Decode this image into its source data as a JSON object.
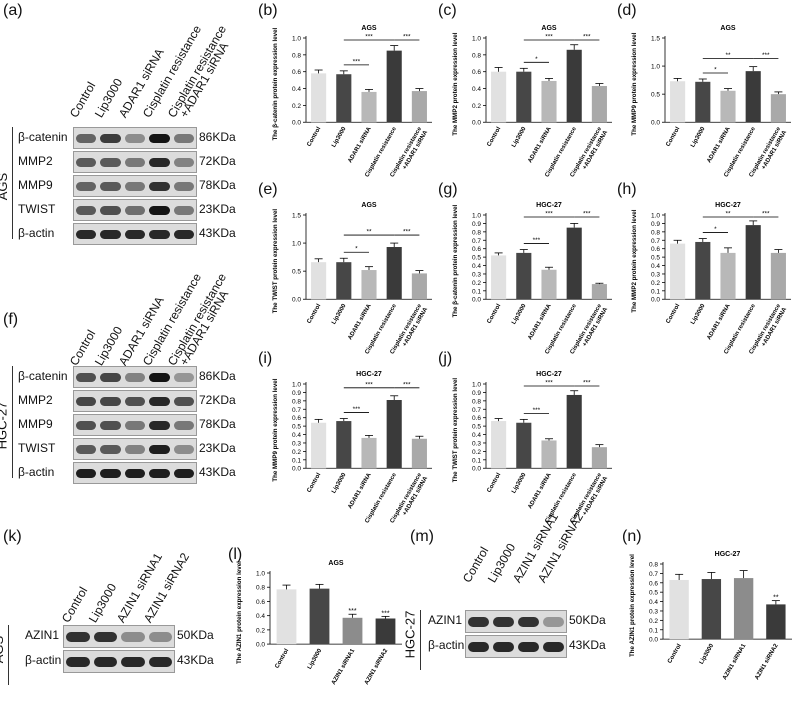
{
  "letters": {
    "a": "(a)",
    "b": "(b)",
    "c": "(c)",
    "d": "(d)",
    "e": "(e)",
    "f": "(f)",
    "g": "(g)",
    "h": "(h)",
    "i": "(i)",
    "j": "(j)",
    "k": "(k)",
    "l": "(l)",
    "m": "(m)",
    "n": "(n)"
  },
  "blots": {
    "a": {
      "cell_line": "AGS",
      "lanes": [
        "Control",
        "Lip3000",
        "ADAR1 siRNA",
        "Cisplatin resistance",
        "Cisplatin resistance +ADAR1 siRNA"
      ],
      "rows": [
        {
          "protein": "β-catenin",
          "size": "86KDa",
          "intensity": [
            0.55,
            0.75,
            0.35,
            0.95,
            0.45
          ]
        },
        {
          "protein": "MMP2",
          "size": "72KDa",
          "intensity": [
            0.6,
            0.6,
            0.45,
            0.85,
            0.4
          ]
        },
        {
          "protein": "MMP9",
          "size": "78KDa",
          "intensity": [
            0.55,
            0.6,
            0.45,
            0.8,
            0.45
          ]
        },
        {
          "protein": "TWIST",
          "size": "23KDa",
          "intensity": [
            0.6,
            0.65,
            0.5,
            0.95,
            0.45
          ]
        },
        {
          "protein": "β-actin",
          "size": "43KDa",
          "intensity": [
            0.85,
            0.85,
            0.85,
            0.85,
            0.85
          ]
        }
      ]
    },
    "f": {
      "cell_line": "HGC-27",
      "lanes": [
        "Control",
        "Lip3000",
        "ADAR1 siRNA",
        "Cisplatin resistance",
        "Cisplatin resistance +ADAR1 siRNA"
      ],
      "rows": [
        {
          "protein": "β-catenin",
          "size": "86KDa",
          "intensity": [
            0.65,
            0.7,
            0.4,
            0.95,
            0.3
          ]
        },
        {
          "protein": "MMP2",
          "size": "72KDa",
          "intensity": [
            0.7,
            0.7,
            0.65,
            0.85,
            0.65
          ]
        },
        {
          "protein": "MMP9",
          "size": "78KDa",
          "intensity": [
            0.65,
            0.65,
            0.45,
            0.85,
            0.45
          ]
        },
        {
          "protein": "TWIST",
          "size": "23KDa",
          "intensity": [
            0.6,
            0.6,
            0.4,
            0.9,
            0.35
          ]
        },
        {
          "protein": "β-actin",
          "size": "43KDa",
          "intensity": [
            0.9,
            0.9,
            0.9,
            0.9,
            0.9
          ]
        }
      ]
    },
    "k": {
      "cell_line": "AGS",
      "lanes": [
        "Control",
        "Lip3000",
        "AZIN1 siRNA1",
        "AZIN1 siRNA2"
      ],
      "rows": [
        {
          "protein": "AZIN1",
          "size": "50KDa",
          "intensity": [
            0.8,
            0.8,
            0.35,
            0.35
          ]
        },
        {
          "protein": "β-actin",
          "size": "43KDa",
          "intensity": [
            0.85,
            0.85,
            0.85,
            0.85
          ]
        }
      ]
    },
    "m": {
      "cell_line": "HGC-27",
      "lanes": [
        "Control",
        "Lip3000",
        "AZIN1 siRNA1",
        "AZIN1 siRNA2"
      ],
      "rows": [
        {
          "protein": "AZIN1",
          "size": "50KDa",
          "intensity": [
            0.8,
            0.8,
            0.8,
            0.3
          ]
        },
        {
          "protein": "β-actin",
          "size": "43KDa",
          "intensity": [
            0.85,
            0.85,
            0.85,
            0.85
          ]
        }
      ]
    }
  },
  "chart_data": [
    {
      "id": "b",
      "type": "bar",
      "title": "AGS",
      "ylabel": "The β-catenin protein expression level",
      "ylim": [
        0,
        1.0
      ],
      "yticks": [
        0,
        0.2,
        0.4,
        0.6,
        0.8,
        1.0
      ],
      "categories": [
        "Control",
        "Lip3000",
        "ADAR1 siRNA",
        "Cisplatin resistance",
        "Cisplatin resistance +ADAR1 siRNA"
      ],
      "values": [
        0.58,
        0.57,
        0.36,
        0.85,
        0.37
      ],
      "errors": [
        0.04,
        0.04,
        0.03,
        0.06,
        0.03
      ],
      "brackets": [
        {
          "from": 1,
          "to": 2,
          "label": "***",
          "level": 0
        },
        {
          "from": 1,
          "to": 3,
          "label": "***",
          "level": 1
        },
        {
          "from": 3,
          "to": 4,
          "label": "***",
          "level": 1
        }
      ]
    },
    {
      "id": "c",
      "type": "bar",
      "title": "AGS",
      "ylabel": "The MMP2 protein expression level",
      "ylim": [
        0,
        1.0
      ],
      "yticks": [
        0,
        0.2,
        0.4,
        0.6,
        0.8,
        1.0
      ],
      "categories": [
        "Control",
        "Lip3000",
        "ADAR1 siRNA",
        "Cisplatin resistance",
        "Cisplatin resistance +ADAR1 siRNA"
      ],
      "values": [
        0.6,
        0.6,
        0.49,
        0.86,
        0.43
      ],
      "errors": [
        0.05,
        0.04,
        0.03,
        0.06,
        0.03
      ],
      "brackets": [
        {
          "from": 1,
          "to": 2,
          "label": "*",
          "level": 0
        },
        {
          "from": 1,
          "to": 3,
          "label": "***",
          "level": 1
        },
        {
          "from": 3,
          "to": 4,
          "label": "***",
          "level": 1
        }
      ]
    },
    {
      "id": "d",
      "type": "bar",
      "title": "AGS",
      "ylabel": "The MMP9 protein expression level",
      "ylim": [
        0,
        1.5
      ],
      "yticks": [
        0,
        0.5,
        1.0,
        1.5
      ],
      "categories": [
        "Control",
        "Lip3000",
        "ADAR1 siRNA",
        "Cisplatin resistance",
        "Cisplatin resistance +ADAR1 siRNA"
      ],
      "values": [
        0.73,
        0.72,
        0.56,
        0.91,
        0.5
      ],
      "errors": [
        0.05,
        0.05,
        0.04,
        0.08,
        0.04
      ],
      "brackets": [
        {
          "from": 1,
          "to": 2,
          "label": "*",
          "level": 0
        },
        {
          "from": 1,
          "to": 3,
          "label": "**",
          "level": 1
        },
        {
          "from": 3,
          "to": 4,
          "label": "***",
          "level": 1
        }
      ]
    },
    {
      "id": "e",
      "type": "bar",
      "title": "AGS",
      "ylabel": "The TWIST protein expression level",
      "ylim": [
        0,
        1.5
      ],
      "yticks": [
        0,
        0.5,
        1.0,
        1.5
      ],
      "categories": [
        "Control",
        "Lip3000",
        "ADAR1 siRNA",
        "Cisplatin resistance",
        "Cisplatin resistance +ADAR1 siRNA"
      ],
      "values": [
        0.66,
        0.66,
        0.52,
        0.93,
        0.46
      ],
      "errors": [
        0.06,
        0.07,
        0.06,
        0.07,
        0.05
      ],
      "brackets": [
        {
          "from": 1,
          "to": 2,
          "label": "*",
          "level": 0
        },
        {
          "from": 1,
          "to": 3,
          "label": "**",
          "level": 1
        },
        {
          "from": 3,
          "to": 4,
          "label": "***",
          "level": 1
        }
      ]
    },
    {
      "id": "g",
      "type": "bar",
      "title": "HGC-27",
      "ylabel": "The β-catenin protein expression level",
      "ylim": [
        0,
        1.0
      ],
      "yticks": [
        0,
        0.1,
        0.2,
        0.3,
        0.4,
        0.5,
        0.6,
        0.7,
        0.8,
        0.9,
        1.0
      ],
      "categories": [
        "Control",
        "Lip3000",
        "ADAR1 siRNA",
        "Cisplatin resistance",
        "Cisplatin resistance +ADAR1 siRNA"
      ],
      "values": [
        0.52,
        0.55,
        0.35,
        0.85,
        0.18
      ],
      "errors": [
        0.03,
        0.04,
        0.03,
        0.05,
        0.01
      ],
      "brackets": [
        {
          "from": 1,
          "to": 2,
          "label": "***",
          "level": 0
        },
        {
          "from": 1,
          "to": 3,
          "label": "***",
          "level": 1
        },
        {
          "from": 3,
          "to": 4,
          "label": "***",
          "level": 1
        }
      ]
    },
    {
      "id": "h",
      "type": "bar",
      "title": "HGC-27",
      "ylabel": "The MMP2 protein expression level",
      "ylim": [
        0,
        1.0
      ],
      "yticks": [
        0,
        0.1,
        0.2,
        0.3,
        0.4,
        0.5,
        0.6,
        0.7,
        0.8,
        0.9,
        1.0
      ],
      "categories": [
        "Control",
        "Lip3000",
        "ADAR1 siRNA",
        "Cisplatin resistance",
        "Cisplatin resistance +ADAR1 siRNA"
      ],
      "values": [
        0.66,
        0.68,
        0.55,
        0.88,
        0.55
      ],
      "errors": [
        0.04,
        0.04,
        0.06,
        0.05,
        0.04
      ],
      "brackets": [
        {
          "from": 1,
          "to": 2,
          "label": "*",
          "level": 0
        },
        {
          "from": 1,
          "to": 3,
          "label": "**",
          "level": 1
        },
        {
          "from": 3,
          "to": 4,
          "label": "***",
          "level": 1
        }
      ]
    },
    {
      "id": "i",
      "type": "bar",
      "title": "HGC-27",
      "ylabel": "The MMP9 protein expression level",
      "ylim": [
        0,
        1.0
      ],
      "yticks": [
        0,
        0.1,
        0.2,
        0.3,
        0.4,
        0.5,
        0.6,
        0.7,
        0.8,
        0.9,
        1.0
      ],
      "categories": [
        "Control",
        "Lip3000",
        "ADAR1 siRNA",
        "Cisplatin resistance",
        "Cisplatin resistance +ADAR1 siRNA"
      ],
      "values": [
        0.54,
        0.56,
        0.36,
        0.81,
        0.35
      ],
      "errors": [
        0.04,
        0.03,
        0.03,
        0.05,
        0.03
      ],
      "brackets": [
        {
          "from": 1,
          "to": 2,
          "label": "***",
          "level": 0
        },
        {
          "from": 1,
          "to": 3,
          "label": "***",
          "level": 1
        },
        {
          "from": 3,
          "to": 4,
          "label": "***",
          "level": 1
        }
      ]
    },
    {
      "id": "j",
      "type": "bar",
      "title": "HGC-27",
      "ylabel": "The TWIST protein expression level",
      "ylim": [
        0,
        1.0
      ],
      "yticks": [
        0,
        0.1,
        0.2,
        0.3,
        0.4,
        0.5,
        0.6,
        0.7,
        0.8,
        0.9,
        1.0
      ],
      "categories": [
        "Control",
        "Lip3000",
        "ADAR1 siRNA",
        "Cisplatin resistance",
        "Cisplatin resistance +ADAR1 siRNA"
      ],
      "values": [
        0.56,
        0.54,
        0.33,
        0.87,
        0.25
      ],
      "errors": [
        0.03,
        0.04,
        0.02,
        0.05,
        0.03
      ],
      "brackets": [
        {
          "from": 1,
          "to": 2,
          "label": "***",
          "level": 0
        },
        {
          "from": 1,
          "to": 3,
          "label": "***",
          "level": 1
        },
        {
          "from": 3,
          "to": 4,
          "label": "***",
          "level": 1
        }
      ]
    },
    {
      "id": "l",
      "type": "bar",
      "title": "AGS",
      "ylabel": "The AZIN1 protein expression level",
      "ylim": [
        0,
        1.0
      ],
      "yticks": [
        0,
        0.2,
        0.4,
        0.6,
        0.8,
        1.0
      ],
      "categories": [
        "Control",
        "Lip3000",
        "AZIN1 siRNA1",
        "AZIN1 siRNA2"
      ],
      "values": [
        0.77,
        0.78,
        0.37,
        0.36
      ],
      "errors": [
        0.06,
        0.06,
        0.05,
        0.03
      ],
      "stars": [
        null,
        null,
        "***",
        "***"
      ]
    },
    {
      "id": "n",
      "type": "bar",
      "title": "HGC-27",
      "ylabel": "The AZIN1 protein expression level",
      "ylim": [
        0,
        0.8
      ],
      "yticks": [
        0,
        0.1,
        0.2,
        0.3,
        0.4,
        0.5,
        0.6,
        0.7,
        0.8
      ],
      "categories": [
        "Control",
        "Lip3000",
        "AZIN1 siRNA1",
        "AZIN1 siRNA2"
      ],
      "values": [
        0.63,
        0.64,
        0.65,
        0.37
      ],
      "errors": [
        0.06,
        0.07,
        0.08,
        0.04
      ],
      "stars": [
        null,
        null,
        null,
        "**"
      ]
    }
  ],
  "colors": {
    "bar_fills": [
      "#e1e1e1",
      "#474747",
      "#b8b8b8",
      "#3a3a3a",
      "#a9a9a9"
    ],
    "bar_fills_4": [
      "#e1e1e1",
      "#474747",
      "#8c8c8c",
      "#3a3a3a"
    ]
  }
}
